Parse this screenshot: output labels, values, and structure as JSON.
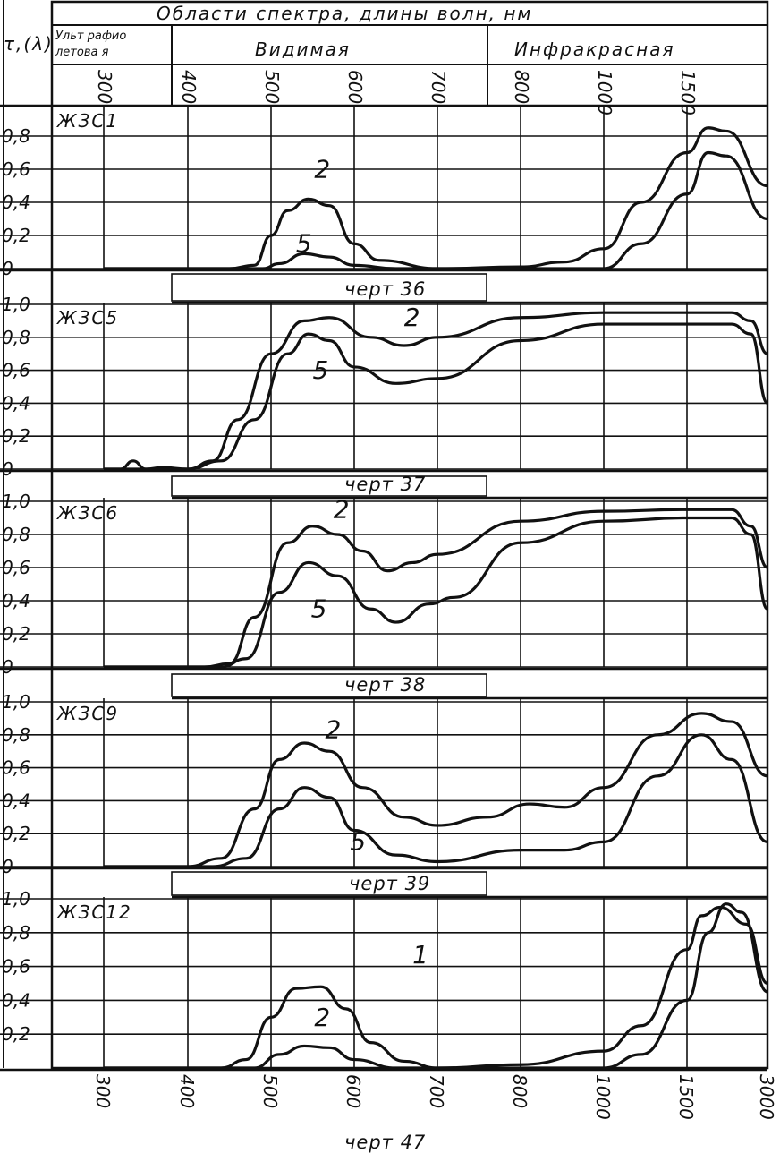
{
  "header": {
    "ylabel": "τ,(λ)",
    "title": "Области спектра, длины волн,   нм",
    "regions": [
      "Ульт рафио летовая",
      "Видимая",
      "Инфракрасная"
    ],
    "uv_lines": [
      "Ульт рафио",
      "летова я"
    ]
  },
  "footer_caption": "черт 47",
  "chart_data": {
    "type": "line",
    "x_ticks": [
      "300",
      "400",
      "500",
      "600",
      "700",
      "800",
      "1000",
      "1500",
      "3000"
    ],
    "x_unit": "нм",
    "panels": [
      {
        "name": "ЖЗС1",
        "caption": "черт 36",
        "y_ticks": [
          "0,8",
          "0,6",
          "0,4",
          "0,2",
          "0"
        ],
        "ylim": [
          0,
          0.9
        ],
        "series": [
          {
            "name": "2",
            "points": [
              [
                300,
                0
              ],
              [
                450,
                0
              ],
              [
                480,
                0.02
              ],
              [
                500,
                0.2
              ],
              [
                520,
                0.35
              ],
              [
                545,
                0.42
              ],
              [
                570,
                0.38
              ],
              [
                600,
                0.15
              ],
              [
                630,
                0.05
              ],
              [
                700,
                0
              ],
              [
                800,
                0.01
              ],
              [
                900,
                0.04
              ],
              [
                1000,
                0.12
              ],
              [
                1200,
                0.4
              ],
              [
                1500,
                0.7
              ],
              [
                1800,
                0.85
              ],
              [
                2100,
                0.83
              ],
              [
                3000,
                0.5
              ]
            ]
          },
          {
            "name": "5",
            "points": [
              [
                300,
                0
              ],
              [
                490,
                0
              ],
              [
                510,
                0.03
              ],
              [
                540,
                0.09
              ],
              [
                570,
                0.07
              ],
              [
                600,
                0.02
              ],
              [
                650,
                0
              ],
              [
                1000,
                0
              ],
              [
                1200,
                0.15
              ],
              [
                1500,
                0.45
              ],
              [
                1800,
                0.7
              ],
              [
                2100,
                0.68
              ],
              [
                3000,
                0.3
              ]
            ]
          }
        ],
        "label_positions": [
          [
            "2",
            552,
            0.55
          ],
          [
            "5",
            530,
            0.1
          ]
        ]
      },
      {
        "name": "ЖЗС5",
        "caption": "черт 37",
        "y_ticks": [
          "1,0",
          "0,8",
          "0,6",
          "0,4",
          "0,2",
          "0"
        ],
        "ylim": [
          0,
          1.0
        ],
        "series": [
          {
            "name": "2",
            "points": [
              [
                300,
                0
              ],
              [
                320,
                0
              ],
              [
                335,
                0.05
              ],
              [
                350,
                0
              ],
              [
                370,
                0.01
              ],
              [
                400,
                0
              ],
              [
                430,
                0.05
              ],
              [
                460,
                0.3
              ],
              [
                500,
                0.7
              ],
              [
                540,
                0.9
              ],
              [
                570,
                0.92
              ],
              [
                620,
                0.8
              ],
              [
                660,
                0.75
              ],
              [
                700,
                0.8
              ],
              [
                800,
                0.92
              ],
              [
                1000,
                0.95
              ],
              [
                1500,
                0.95
              ],
              [
                2200,
                0.95
              ],
              [
                2600,
                0.9
              ],
              [
                3000,
                0.7
              ]
            ]
          },
          {
            "name": "5",
            "points": [
              [
                300,
                0
              ],
              [
                400,
                0
              ],
              [
                440,
                0.05
              ],
              [
                480,
                0.3
              ],
              [
                520,
                0.7
              ],
              [
                545,
                0.82
              ],
              [
                570,
                0.78
              ],
              [
                600,
                0.62
              ],
              [
                650,
                0.52
              ],
              [
                700,
                0.55
              ],
              [
                800,
                0.78
              ],
              [
                1000,
                0.88
              ],
              [
                1500,
                0.88
              ],
              [
                2200,
                0.88
              ],
              [
                2600,
                0.82
              ],
              [
                3000,
                0.4
              ]
            ]
          }
        ],
        "label_positions": [
          [
            "2",
            660,
            0.87
          ],
          [
            "5",
            550,
            0.55
          ]
        ]
      },
      {
        "name": "ЖЗС6",
        "caption": "черт 38",
        "y_ticks": [
          "1,0",
          "0,8",
          "0,6",
          "0,4",
          "0,2",
          "0"
        ],
        "ylim": [
          0,
          1.0
        ],
        "series": [
          {
            "name": "2",
            "points": [
              [
                300,
                0
              ],
              [
                420,
                0
              ],
              [
                450,
                0.02
              ],
              [
                480,
                0.3
              ],
              [
                520,
                0.75
              ],
              [
                550,
                0.85
              ],
              [
                580,
                0.8
              ],
              [
                610,
                0.7
              ],
              [
                640,
                0.58
              ],
              [
                670,
                0.63
              ],
              [
                700,
                0.68
              ],
              [
                800,
                0.88
              ],
              [
                1000,
                0.94
              ],
              [
                1500,
                0.95
              ],
              [
                2200,
                0.95
              ],
              [
                2600,
                0.85
              ],
              [
                3000,
                0.6
              ]
            ]
          },
          {
            "name": "5",
            "points": [
              [
                300,
                0
              ],
              [
                440,
                0
              ],
              [
                470,
                0.05
              ],
              [
                510,
                0.45
              ],
              [
                545,
                0.63
              ],
              [
                580,
                0.55
              ],
              [
                620,
                0.35
              ],
              [
                650,
                0.27
              ],
              [
                690,
                0.38
              ],
              [
                720,
                0.42
              ],
              [
                800,
                0.75
              ],
              [
                1000,
                0.88
              ],
              [
                1500,
                0.9
              ],
              [
                2200,
                0.9
              ],
              [
                2600,
                0.8
              ],
              [
                3000,
                0.35
              ]
            ]
          }
        ],
        "label_positions": [
          [
            "2",
            575,
            0.9
          ],
          [
            "5",
            548,
            0.3
          ]
        ]
      },
      {
        "name": "ЖЗС9",
        "caption": "черт 39",
        "y_ticks": [
          "1,0",
          "0,8",
          "0,6",
          "0,4",
          "0,2",
          "0"
        ],
        "ylim": [
          0,
          1.0
        ],
        "series": [
          {
            "name": "2",
            "points": [
              [
                300,
                0
              ],
              [
                400,
                0
              ],
              [
                440,
                0.05
              ],
              [
                480,
                0.35
              ],
              [
                510,
                0.65
              ],
              [
                540,
                0.75
              ],
              [
                570,
                0.7
              ],
              [
                610,
                0.48
              ],
              [
                660,
                0.3
              ],
              [
                700,
                0.25
              ],
              [
                760,
                0.3
              ],
              [
                820,
                0.38
              ],
              [
                900,
                0.36
              ],
              [
                1000,
                0.48
              ],
              [
                1300,
                0.8
              ],
              [
                1700,
                0.93
              ],
              [
                2200,
                0.88
              ],
              [
                3000,
                0.55
              ]
            ]
          },
          {
            "name": "5",
            "points": [
              [
                300,
                0
              ],
              [
                430,
                0
              ],
              [
                470,
                0.05
              ],
              [
                510,
                0.35
              ],
              [
                540,
                0.48
              ],
              [
                570,
                0.42
              ],
              [
                600,
                0.22
              ],
              [
                650,
                0.07
              ],
              [
                700,
                0.03
              ],
              [
                800,
                0.1
              ],
              [
                900,
                0.1
              ],
              [
                1000,
                0.15
              ],
              [
                1300,
                0.55
              ],
              [
                1700,
                0.8
              ],
              [
                2200,
                0.65
              ],
              [
                3000,
                0.15
              ]
            ]
          }
        ],
        "label_positions": [
          [
            "2",
            565,
            0.78
          ],
          [
            "5",
            595,
            0.1
          ]
        ]
      },
      {
        "name": "ЖЗС12",
        "caption": "",
        "y_ticks": [
          "1,0",
          "0,8",
          "0,6",
          "0,4",
          "0,2"
        ],
        "ylim": [
          0,
          1.0
        ],
        "series": [
          {
            "name": "1",
            "points": [
              [
                300,
                0
              ],
              [
                440,
                0
              ],
              [
                470,
                0.05
              ],
              [
                500,
                0.3
              ],
              [
                530,
                0.47
              ],
              [
                560,
                0.48
              ],
              [
                590,
                0.35
              ],
              [
                620,
                0.15
              ],
              [
                660,
                0.04
              ],
              [
                700,
                0
              ],
              [
                800,
                0.02
              ],
              [
                1000,
                0.1
              ],
              [
                1200,
                0.25
              ],
              [
                1500,
                0.7
              ],
              [
                1700,
                0.9
              ],
              [
                2000,
                0.95
              ],
              [
                2500,
                0.85
              ],
              [
                3000,
                0.5
              ]
            ]
          },
          {
            "name": "2",
            "points": [
              [
                300,
                0
              ],
              [
                480,
                0
              ],
              [
                510,
                0.08
              ],
              [
                540,
                0.13
              ],
              [
                570,
                0.12
              ],
              [
                600,
                0.05
              ],
              [
                650,
                0
              ],
              [
                1000,
                0
              ],
              [
                1200,
                0.08
              ],
              [
                1500,
                0.4
              ],
              [
                1800,
                0.8
              ],
              [
                2100,
                0.97
              ],
              [
                2400,
                0.92
              ],
              [
                3000,
                0.45
              ]
            ]
          }
        ],
        "label_positions": [
          [
            "1",
            670,
            0.62
          ],
          [
            "2",
            552,
            0.25
          ]
        ]
      }
    ]
  }
}
